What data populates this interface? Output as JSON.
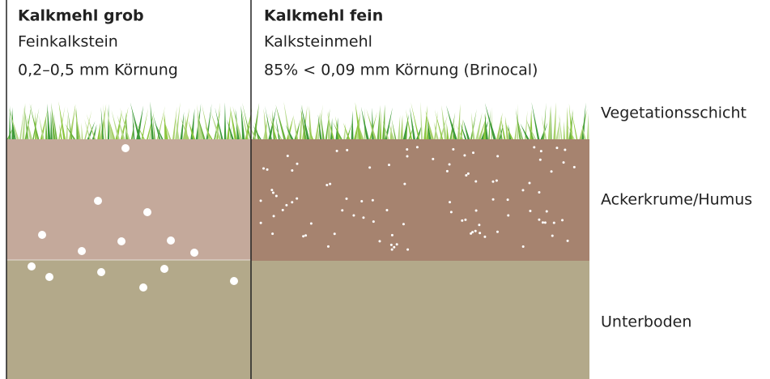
{
  "panels": [
    {
      "title": "Kalkmehl grob",
      "lines": [
        "Feinkalkstein",
        "0,2–0,5 mm Körnung"
      ]
    },
    {
      "title": "Kalkmehl fein",
      "lines": [
        "Kalksteinmehl",
        "85% < 0,09 mm Körnung (Brinocal)"
      ]
    }
  ],
  "layers": [
    "Vegetationsschicht",
    "Ackerkrume/Humus",
    "Unterboden"
  ]
}
